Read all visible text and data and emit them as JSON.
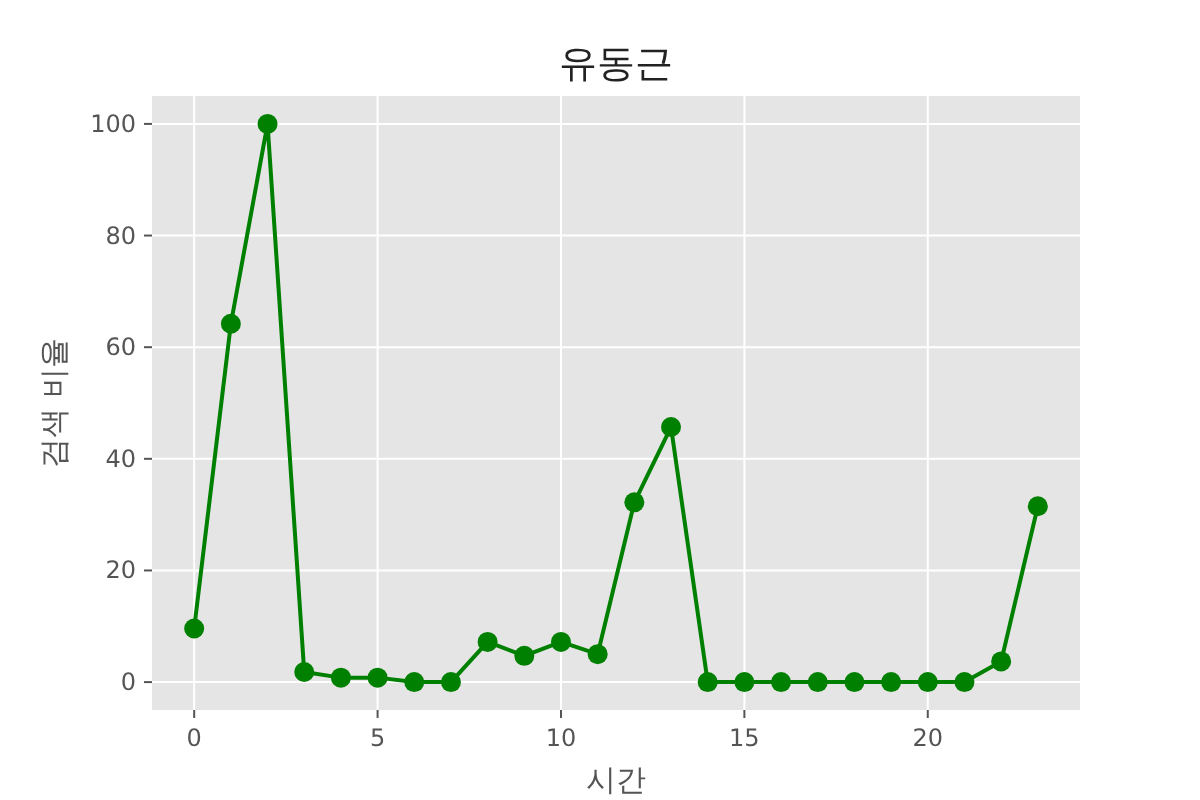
{
  "chart_data": {
    "type": "line",
    "title": "유동근",
    "xlabel": "시간",
    "ylabel": "검색 비율",
    "x": [
      0,
      1,
      2,
      3,
      4,
      5,
      6,
      7,
      8,
      9,
      10,
      11,
      12,
      13,
      14,
      15,
      16,
      17,
      18,
      19,
      20,
      21,
      22,
      23
    ],
    "series": [
      {
        "color": "#008000",
        "values": [
          9.6,
          64.2,
          100,
          1.8,
          0.8,
          0.8,
          0,
          0,
          7.2,
          4.7,
          7.2,
          5.0,
          32.2,
          45.7,
          0,
          0,
          0,
          0,
          0,
          0,
          0,
          0,
          3.7,
          31.5
        ]
      }
    ],
    "xlim": [
      -1.15,
      24.15
    ],
    "ylim": [
      -5,
      105
    ],
    "xticks": [
      0,
      5,
      10,
      15,
      20
    ],
    "yticks": [
      0,
      20,
      40,
      60,
      80,
      100
    ],
    "grid": true,
    "marker": "circle",
    "line_style": "solid"
  }
}
